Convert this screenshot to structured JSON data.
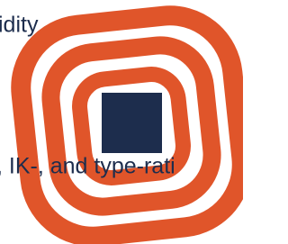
{
  "text_fragments": {
    "top": "idity",
    "middle": ", IK-, and type-rati"
  }
}
